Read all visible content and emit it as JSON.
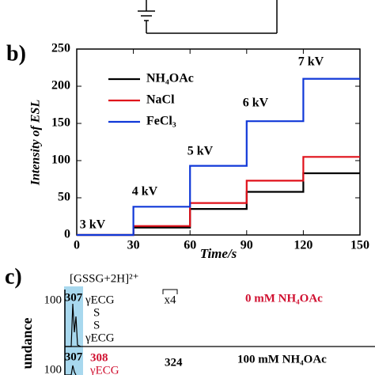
{
  "chart_data": {
    "type": "line",
    "panel_label": "b)",
    "x_label": "Time/s",
    "y_label": "Intensity of ESL",
    "x": [
      0,
      30,
      30,
      60,
      60,
      90,
      90,
      120,
      120,
      150
    ],
    "series": [
      {
        "name": "NH₄OAc",
        "color": "#000000",
        "values": [
          0,
          0,
          10,
          10,
          35,
          35,
          58,
          58,
          83,
          83
        ]
      },
      {
        "name": "NaCl",
        "color": "#e0101a",
        "values": [
          0,
          0,
          12,
          12,
          43,
          43,
          73,
          73,
          105,
          105
        ]
      },
      {
        "name": "FeCl₃",
        "color": "#1038d8",
        "values": [
          0,
          0,
          38,
          38,
          93,
          93,
          153,
          153,
          210,
          210
        ]
      }
    ],
    "annotations": [
      "3 kV",
      "4 kV",
      "5 kV",
      "6 kV",
      "7 kV"
    ],
    "xlim": [
      0,
      150
    ],
    "xticks": [
      0,
      30,
      60,
      90,
      120,
      150
    ],
    "ylim": [
      0,
      250
    ],
    "yticks": [
      0,
      50,
      100,
      150,
      200,
      250
    ],
    "legend": "upper left"
  },
  "panel_c": {
    "label": "c)",
    "ion": "[GSSG+2H]²⁺",
    "y_label": "undance",
    "top": {
      "axis_tick": "100",
      "peak": "307",
      "scale": "x4",
      "condition": "0 mM NH₄OAc",
      "structure": [
        "γECG",
        "S",
        "S",
        "γECG"
      ]
    },
    "bottom": {
      "axis_tick": "100",
      "peak": "307",
      "peak2": "308",
      "peak3": "324",
      "condition": "100 mM NH₄OAc",
      "structure": "γECG"
    }
  }
}
